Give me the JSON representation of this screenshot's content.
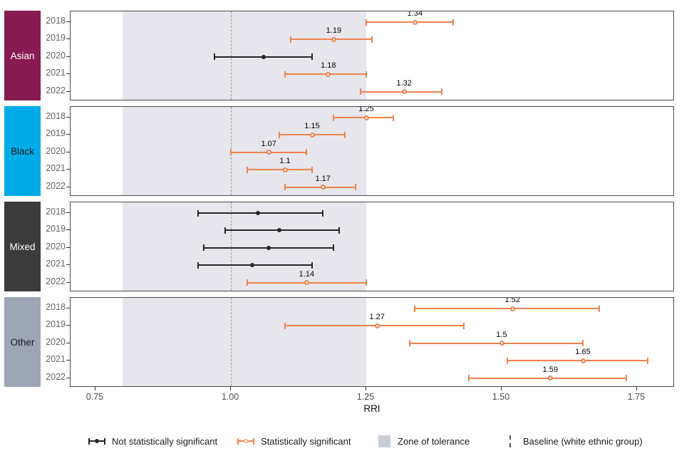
{
  "chart_data": {
    "type": "pointrange",
    "xlabel": "RRI",
    "x_domain": [
      0.704,
      1.82
    ],
    "x_ticks": [
      0.75,
      1.0,
      1.25,
      1.5,
      1.75
    ],
    "x_tick_labels": [
      "0.75",
      "1.00",
      "1.25",
      "1.50",
      "1.75"
    ],
    "baseline": 1.0,
    "zone_of_tolerance": {
      "from": 0.8,
      "to": 1.25
    },
    "years": [
      "2018",
      "2019",
      "2020",
      "2021",
      "2022"
    ],
    "colors": {
      "significant": "#F0824C",
      "not_significant": "#262626",
      "zone_fill": "#E7E6EC",
      "baseline_line": "#9A9A9A"
    },
    "groups": [
      {
        "name": "Asian",
        "strip_color": "#871B4F",
        "strip_text": "#FFFFFF",
        "rows": [
          {
            "year": "2018",
            "value": 1.34,
            "label": "1.34",
            "ci_low": 1.25,
            "ci_high": 1.41,
            "significant": true
          },
          {
            "year": "2019",
            "value": 1.19,
            "label": "1.19",
            "ci_low": 1.11,
            "ci_high": 1.26,
            "significant": true
          },
          {
            "year": "2020",
            "value": 1.06,
            "label": null,
            "ci_low": 0.97,
            "ci_high": 1.15,
            "significant": false
          },
          {
            "year": "2021",
            "value": 1.18,
            "label": "1.18",
            "ci_low": 1.1,
            "ci_high": 1.25,
            "significant": true
          },
          {
            "year": "2022",
            "value": 1.32,
            "label": "1.32",
            "ci_low": 1.24,
            "ci_high": 1.39,
            "significant": true
          }
        ]
      },
      {
        "name": "Black",
        "strip_color": "#00ACE8",
        "strip_text": "#101820",
        "rows": [
          {
            "year": "2018",
            "value": 1.25,
            "label": "1.25",
            "ci_low": 1.19,
            "ci_high": 1.3,
            "significant": true
          },
          {
            "year": "2019",
            "value": 1.15,
            "label": "1.15",
            "ci_low": 1.09,
            "ci_high": 1.21,
            "significant": true
          },
          {
            "year": "2020",
            "value": 1.07,
            "label": "1.07",
            "ci_low": 1.0,
            "ci_high": 1.14,
            "significant": true
          },
          {
            "year": "2021",
            "value": 1.1,
            "label": "1.1",
            "ci_low": 1.03,
            "ci_high": 1.15,
            "significant": true
          },
          {
            "year": "2022",
            "value": 1.17,
            "label": "1.17",
            "ci_low": 1.1,
            "ci_high": 1.23,
            "significant": true
          }
        ]
      },
      {
        "name": "Mixed",
        "strip_color": "#3B3B3B",
        "strip_text": "#FFFFFF",
        "rows": [
          {
            "year": "2018",
            "value": 1.05,
            "label": null,
            "ci_low": 0.94,
            "ci_high": 1.17,
            "significant": false
          },
          {
            "year": "2019",
            "value": 1.09,
            "label": null,
            "ci_low": 0.99,
            "ci_high": 1.2,
            "significant": false
          },
          {
            "year": "2020",
            "value": 1.07,
            "label": null,
            "ci_low": 0.95,
            "ci_high": 1.19,
            "significant": false
          },
          {
            "year": "2021",
            "value": 1.04,
            "label": null,
            "ci_low": 0.94,
            "ci_high": 1.15,
            "significant": false
          },
          {
            "year": "2022",
            "value": 1.14,
            "label": "1.14",
            "ci_low": 1.03,
            "ci_high": 1.25,
            "significant": true
          }
        ]
      },
      {
        "name": "Other",
        "strip_color": "#9EA5B5",
        "strip_text": "#14181F",
        "rows": [
          {
            "year": "2018",
            "value": 1.52,
            "label": "1.52",
            "ci_low": 1.34,
            "ci_high": 1.68,
            "significant": true
          },
          {
            "year": "2019",
            "value": 1.27,
            "label": "1.27",
            "ci_low": 1.1,
            "ci_high": 1.43,
            "significant": true
          },
          {
            "year": "2020",
            "value": 1.5,
            "label": "1.5",
            "ci_low": 1.33,
            "ci_high": 1.65,
            "significant": true
          },
          {
            "year": "2021",
            "value": 1.65,
            "label": "1.65",
            "ci_low": 1.51,
            "ci_high": 1.77,
            "significant": true
          },
          {
            "year": "2022",
            "value": 1.59,
            "label": "1.59",
            "ci_low": 1.44,
            "ci_high": 1.73,
            "significant": true
          }
        ]
      }
    ]
  },
  "legend": {
    "items": [
      {
        "label": "Not statistically significant",
        "glyph": "pointrange",
        "color": "#262626",
        "dot_fill": "solid"
      },
      {
        "label": "Statistically significant",
        "glyph": "pointrange",
        "color": "#F0824C",
        "dot_fill": "hollow"
      },
      {
        "label": "Zone of tolerance",
        "glyph": "square",
        "color": "#C9CDD8"
      },
      {
        "label": "Baseline (white ethnic group)",
        "glyph": "dashed-line",
        "color": "#4A4A4A"
      }
    ]
  }
}
